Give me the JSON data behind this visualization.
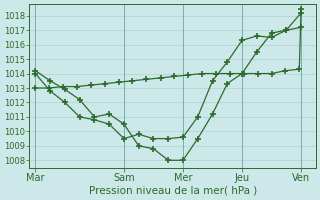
{
  "title": "Pression niveau de la mer( hPa )",
  "bg_color": "#cce8e8",
  "grid_color": "#aacccc",
  "line_color": "#2d6a2d",
  "ylim": [
    1007.5,
    1018.8
  ],
  "yticks": [
    1008,
    1009,
    1010,
    1011,
    1012,
    1013,
    1014,
    1015,
    1016,
    1017,
    1018
  ],
  "day_labels": [
    "Mar",
    "Sam",
    "Mer",
    "Jeu",
    "Ven"
  ],
  "day_positions": [
    0,
    3,
    5,
    7,
    9
  ],
  "lines": [
    {
      "x": [
        0,
        0.47,
        0.94,
        1.41,
        1.88,
        2.35,
        2.82,
        3.29,
        3.76,
        4.24,
        4.71,
        5.18,
        5.65,
        6.12,
        6.59,
        7.06,
        7.53,
        8.0,
        8.47,
        8.94,
        9.0
      ],
      "y": [
        1013.0,
        1013.0,
        1013.1,
        1013.1,
        1013.2,
        1013.3,
        1013.4,
        1013.5,
        1013.6,
        1013.7,
        1013.8,
        1013.9,
        1014.0,
        1014.0,
        1014.0,
        1014.0,
        1014.0,
        1014.0,
        1014.2,
        1014.3,
        1018.5
      ]
    },
    {
      "x": [
        0,
        0.5,
        1.0,
        1.5,
        2.0,
        2.5,
        3.0,
        3.5,
        4.0,
        4.5,
        5.0,
        5.5,
        6.0,
        6.5,
        7.0,
        7.5,
        8.0,
        8.5,
        9.0
      ],
      "y": [
        1014.2,
        1013.5,
        1012.9,
        1012.2,
        1011.0,
        1011.2,
        1010.5,
        1009.0,
        1008.8,
        1008.0,
        1008.0,
        1009.5,
        1011.2,
        1013.3,
        1014.0,
        1015.5,
        1016.8,
        1017.0,
        1018.2
      ]
    },
    {
      "x": [
        0,
        0.5,
        1.0,
        1.5,
        2.0,
        2.5,
        3.0,
        3.5,
        4.0,
        4.5,
        5.0,
        5.5,
        6.0,
        6.5,
        7.0,
        7.5,
        8.0,
        8.5,
        9.0
      ],
      "y": [
        1014.0,
        1012.8,
        1012.0,
        1011.0,
        1010.8,
        1010.5,
        1009.5,
        1009.8,
        1009.5,
        1009.5,
        1009.6,
        1011.0,
        1013.5,
        1014.8,
        1016.3,
        1016.6,
        1016.5,
        1017.0,
        1017.2
      ]
    }
  ],
  "xlabel_fontsize": 7.5,
  "ytick_fontsize": 6,
  "xtick_fontsize": 7
}
